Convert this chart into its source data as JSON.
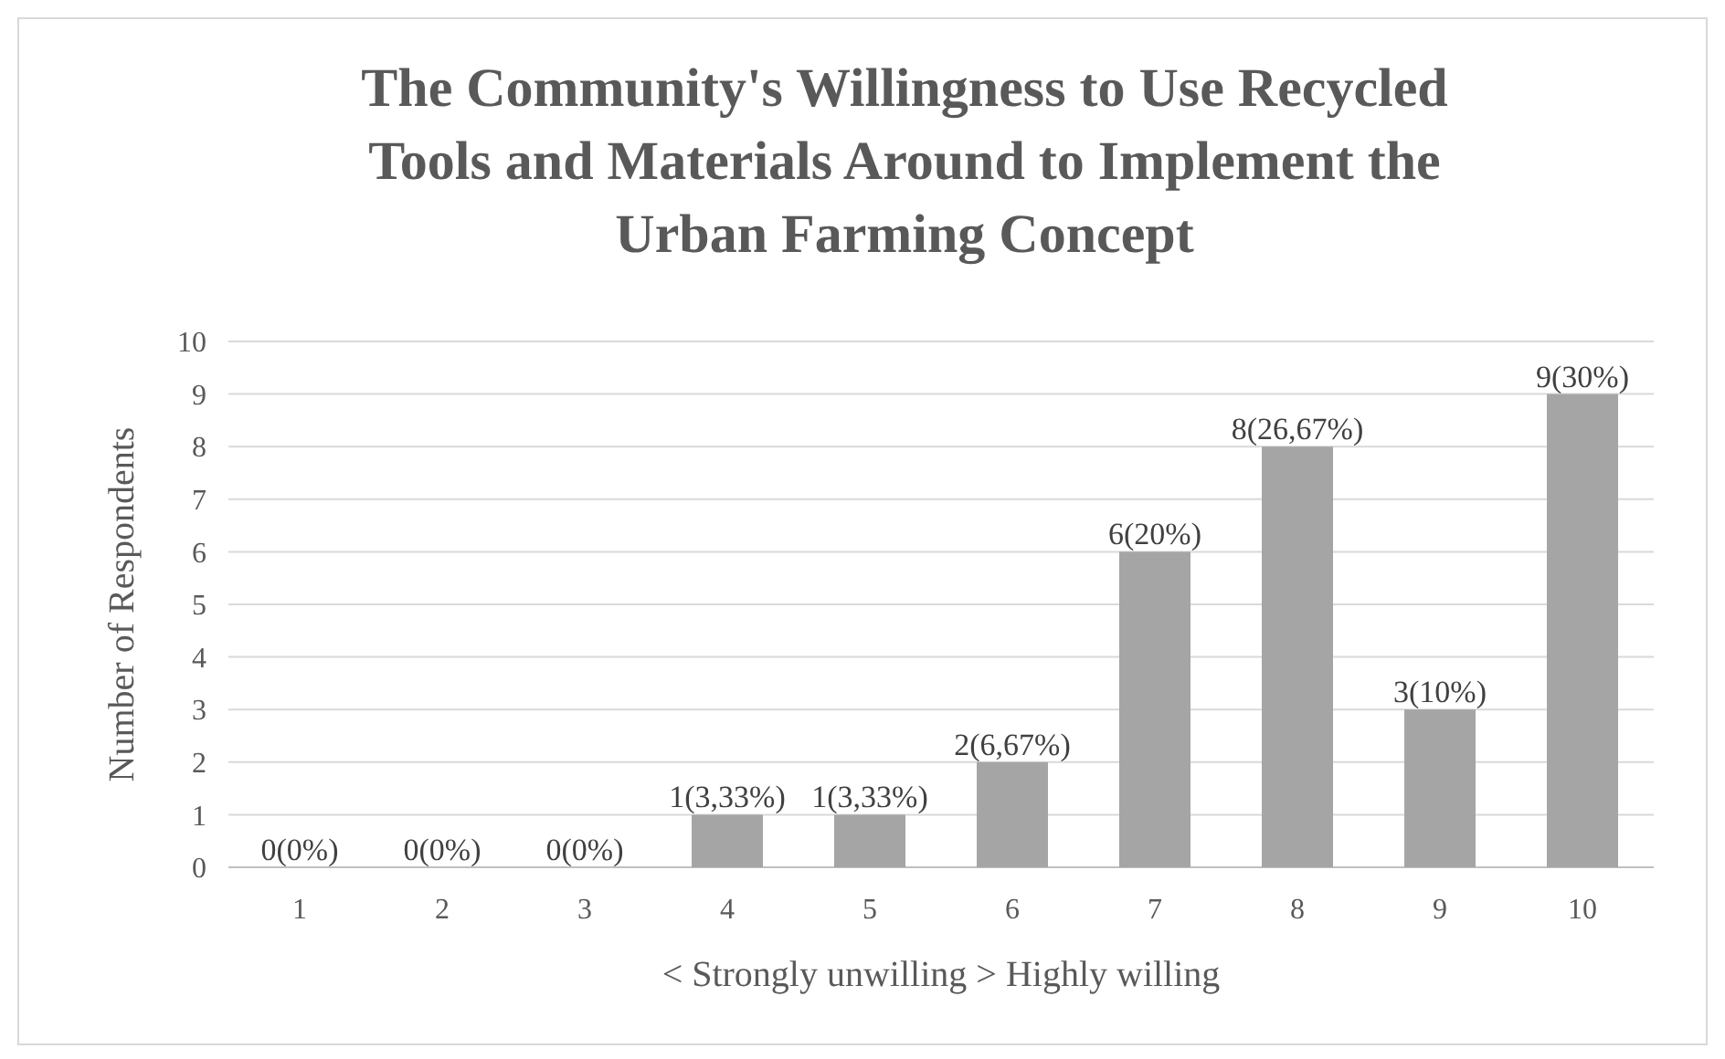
{
  "chart_data": {
    "type": "bar",
    "title": "The Community's Willingness to Use Recycled Tools and Materials Around to Implement the Urban Farming Concept",
    "categories": [
      "1",
      "2",
      "3",
      "4",
      "5",
      "6",
      "7",
      "8",
      "9",
      "10"
    ],
    "values": [
      0,
      0,
      0,
      1,
      1,
      2,
      6,
      8,
      3,
      9
    ],
    "value_labels": [
      "0(0%)",
      "0(0%)",
      "0(0%)",
      "1(3,33%)",
      "1(3,33%)",
      "2(6,67%)",
      "6(20%)",
      "8(26,67%)",
      "3(10%)",
      "9(30%)"
    ],
    "color": "#a5a5a5",
    "xlabel": "< Strongly unwilling > Highly willing",
    "ylabel": "Number of Respondents",
    "ylim": [
      0,
      10
    ],
    "yticks": [
      0,
      1,
      2,
      3,
      4,
      5,
      6,
      7,
      8,
      9,
      10
    ],
    "grid": "y"
  }
}
